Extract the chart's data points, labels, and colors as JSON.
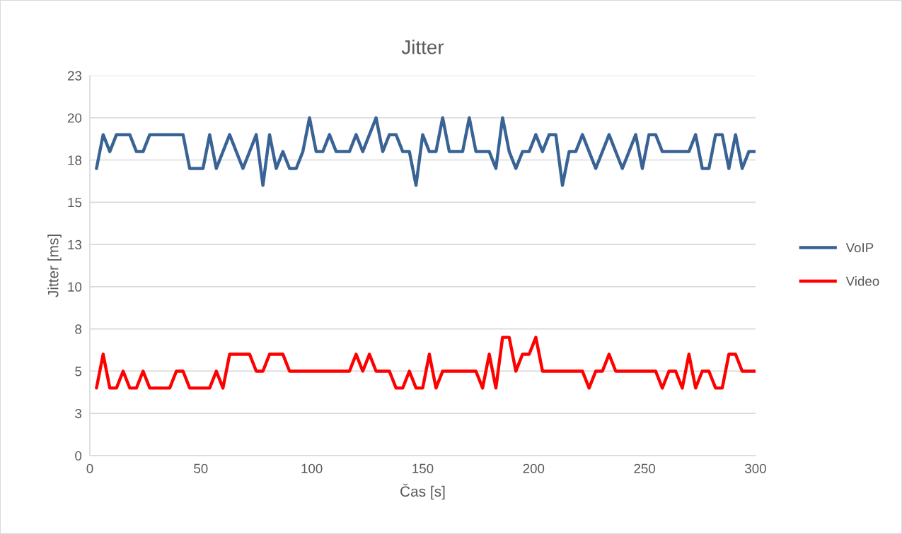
{
  "chart_data": {
    "type": "line",
    "title": "Jitter",
    "xlabel": "Čas [s]",
    "ylabel": "Jitter [ms]",
    "x": [
      3,
      6,
      9,
      12,
      15,
      18,
      21,
      24,
      27,
      30,
      33,
      36,
      39,
      42,
      45,
      48,
      51,
      54,
      57,
      60,
      63,
      66,
      69,
      72,
      75,
      78,
      81,
      84,
      87,
      90,
      93,
      96,
      99,
      102,
      105,
      108,
      111,
      114,
      117,
      120,
      123,
      126,
      129,
      132,
      135,
      138,
      141,
      144,
      147,
      150,
      153,
      156,
      159,
      162,
      165,
      168,
      171,
      174,
      177,
      180,
      183,
      186,
      189,
      192,
      195,
      198,
      201,
      204,
      207,
      210,
      213,
      216,
      219,
      222,
      225,
      228,
      231,
      234,
      237,
      240,
      243,
      246,
      249,
      252,
      255,
      258,
      261,
      264,
      267,
      270,
      273,
      276,
      279,
      282,
      285,
      288,
      291,
      294,
      297,
      300
    ],
    "series": [
      {
        "name": "VoIP",
        "color": "#3a6395",
        "values": [
          17,
          19,
          18,
          19,
          19,
          19,
          18,
          18,
          19,
          19,
          19,
          19,
          19,
          19,
          17,
          17,
          17,
          19,
          17,
          18,
          19,
          18,
          17,
          18,
          19,
          16,
          19,
          17,
          18,
          17,
          17,
          18,
          20,
          18,
          18,
          19,
          18,
          18,
          18,
          19,
          18,
          19,
          20,
          18,
          19,
          19,
          18,
          18,
          16,
          19,
          18,
          18,
          20,
          18,
          18,
          18,
          20,
          18,
          18,
          18,
          17,
          20,
          18,
          17,
          18,
          18,
          19,
          18,
          19,
          19,
          16,
          18,
          18,
          19,
          18,
          17,
          18,
          19,
          18,
          17,
          18,
          19,
          17,
          19,
          19,
          18,
          18,
          18,
          18,
          18,
          19,
          17,
          17,
          19,
          19,
          17,
          19,
          17,
          18,
          18
        ]
      },
      {
        "name": "Video",
        "color": "#ff0000",
        "values": [
          4,
          6,
          4,
          4,
          5,
          4,
          4,
          5,
          4,
          4,
          4,
          4,
          5,
          5,
          4,
          4,
          4,
          4,
          5,
          4,
          6,
          6,
          6,
          6,
          5,
          5,
          6,
          6,
          6,
          5,
          5,
          5,
          5,
          5,
          5,
          5,
          5,
          5,
          5,
          6,
          5,
          6,
          5,
          5,
          5,
          4,
          4,
          5,
          4,
          4,
          6,
          4,
          5,
          5,
          5,
          5,
          5,
          5,
          4,
          6,
          4,
          7,
          7,
          5,
          6,
          6,
          7,
          5,
          5,
          5,
          5,
          5,
          5,
          5,
          4,
          5,
          5,
          6,
          5,
          5,
          5,
          5,
          5,
          5,
          5,
          4,
          5,
          5,
          4,
          6,
          4,
          5,
          5,
          4,
          4,
          6,
          6,
          5,
          5,
          5
        ]
      }
    ],
    "xlim": [
      0,
      300
    ],
    "xticks": [
      0,
      50,
      100,
      150,
      200,
      250,
      300
    ],
    "ylim": [
      0,
      22.5
    ],
    "yticks": [
      0,
      {
        "value": 2.5,
        "label": "3"
      },
      5,
      {
        "value": 7.5,
        "label": "8"
      },
      10,
      {
        "value": 12.5,
        "label": "13"
      },
      15,
      {
        "value": 17.5,
        "label": "18"
      },
      20,
      {
        "value": 22.5,
        "label": "23"
      }
    ],
    "grid": "y",
    "legend": "right",
    "marker": "none",
    "line_style": "solid"
  }
}
